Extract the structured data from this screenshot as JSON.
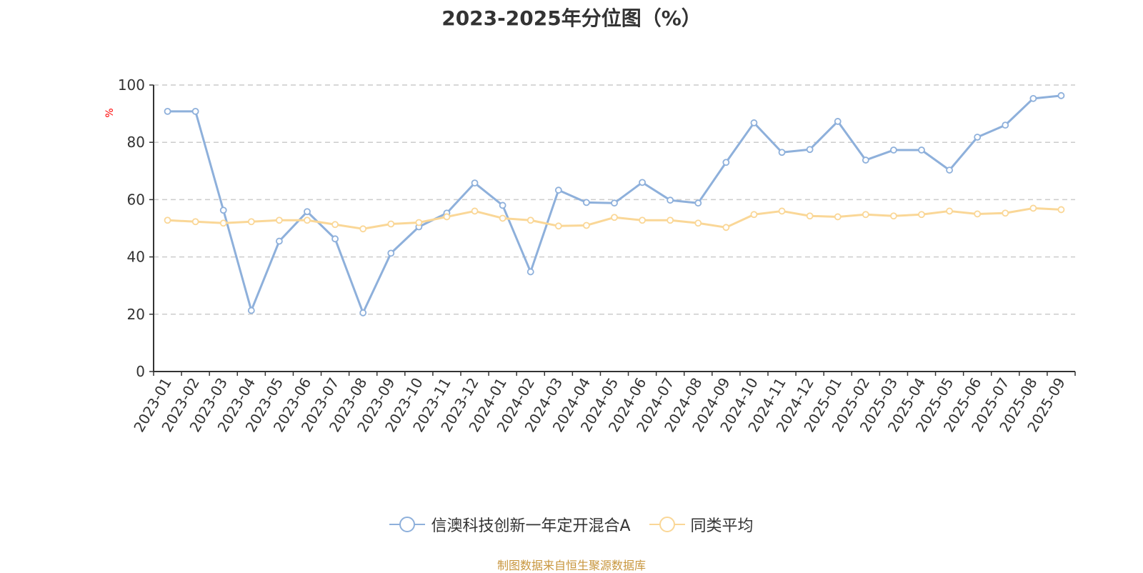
{
  "chart_data": {
    "type": "line",
    "title": "2023-2025年分位图（%）",
    "ylabel": "%",
    "xlabel": "",
    "ylim": [
      0,
      100
    ],
    "yticks": [
      0,
      20,
      40,
      60,
      80,
      100
    ],
    "grid": "horizontal dashed",
    "legend_position": "bottom-center",
    "categories": [
      "2023-01",
      "2023-02",
      "2023-03",
      "2023-04",
      "2023-05",
      "2023-06",
      "2023-07",
      "2023-08",
      "2023-09",
      "2023-10",
      "2023-11",
      "2023-12",
      "2024-01",
      "2024-02",
      "2024-03",
      "2024-04",
      "2024-05",
      "2024-06",
      "2024-07",
      "2024-08",
      "2024-09",
      "2024-10",
      "2024-11",
      "2024-12",
      "2025-01",
      "2025-02",
      "2025-03",
      "2025-04",
      "2025-05",
      "2025-06",
      "2025-07",
      "2025-08",
      "2025-09"
    ],
    "series": [
      {
        "name": "信澳科技创新一年定开混合A",
        "color": "#8eb0db",
        "values": [
          90.8,
          90.8,
          56.3,
          21.3,
          45.5,
          55.8,
          46.3,
          20.5,
          41.3,
          50.5,
          55.3,
          65.8,
          58.0,
          34.8,
          63.3,
          59.0,
          58.8,
          66.0,
          59.8,
          58.8,
          73.0,
          86.8,
          76.5,
          77.5,
          87.3,
          73.8,
          77.3,
          77.3,
          70.3,
          81.8,
          86.0,
          95.3,
          96.3
        ]
      },
      {
        "name": "同类平均",
        "color": "#fad797",
        "values": [
          52.8,
          52.3,
          51.8,
          52.3,
          52.8,
          52.8,
          51.3,
          49.8,
          51.5,
          52.0,
          54.0,
          56.0,
          53.5,
          52.8,
          50.8,
          51.0,
          53.8,
          52.8,
          52.8,
          51.8,
          50.3,
          54.8,
          56.0,
          54.3,
          54.0,
          54.8,
          54.3,
          54.8,
          56.0,
          55.0,
          55.3,
          57.0,
          56.5
        ]
      }
    ]
  },
  "footer": {
    "source": "制图数据来自恒生聚源数据库"
  }
}
